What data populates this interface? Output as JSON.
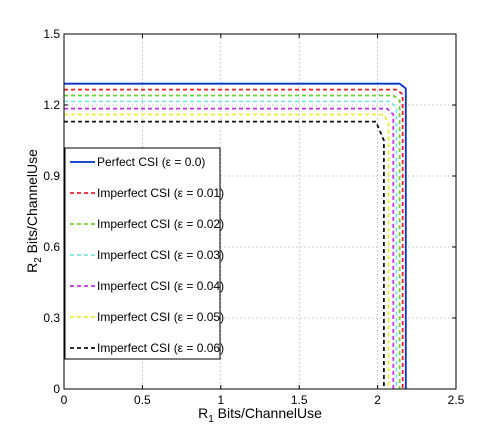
{
  "chart_data": {
    "type": "line",
    "title": "",
    "xlabel": {
      "main": "R",
      "sub": "1",
      "rest": " Bits/ChannelUse"
    },
    "ylabel": {
      "main": "R",
      "sub": "2",
      "rest": " Bits/ChannelUse"
    },
    "xlim": [
      0,
      2.5
    ],
    "ylim": [
      0,
      1.5
    ],
    "xticks": [
      0,
      0.5,
      1,
      1.5,
      2,
      2.5
    ],
    "yticks": [
      0,
      0.3,
      0.6,
      0.9,
      1.2,
      1.5
    ],
    "xtick_labels": [
      "0",
      "0.5",
      "1",
      "1.5",
      "2",
      "2.5"
    ],
    "ytick_labels": [
      "0",
      "0.3",
      "0.6",
      "0.9",
      "1.2",
      "1.5"
    ],
    "grid": true,
    "legend_position": "center-left",
    "series": [
      {
        "name": "Perfect CSI (ε = 0.0)",
        "color": "#0033cc",
        "dash": "solid",
        "points": [
          [
            0,
            1.29
          ],
          [
            2.14,
            1.29
          ],
          [
            2.18,
            1.27
          ],
          [
            2.18,
            0
          ]
        ]
      },
      {
        "name": "Imperfect CSI (ε = 0.01)",
        "color": "#e8202a",
        "dash": "dashed",
        "points": [
          [
            0,
            1.265
          ],
          [
            2.12,
            1.265
          ],
          [
            2.16,
            1.245
          ],
          [
            2.16,
            0
          ]
        ]
      },
      {
        "name": "Imperfect CSI (ε = 0.02)",
        "color": "#6fd12a",
        "dash": "dashed",
        "points": [
          [
            0,
            1.24
          ],
          [
            2.1,
            1.24
          ],
          [
            2.14,
            1.22
          ],
          [
            2.14,
            0
          ]
        ]
      },
      {
        "name": "Imperfect CSI (ε = 0.03)",
        "color": "#7ae8e0",
        "dash": "dashed",
        "points": [
          [
            0,
            1.215
          ],
          [
            2.08,
            1.215
          ],
          [
            2.12,
            1.19
          ],
          [
            2.12,
            0
          ]
        ]
      },
      {
        "name": "Imperfect CSI (ε = 0.04)",
        "color": "#c531e6",
        "dash": "dashed",
        "points": [
          [
            0,
            1.185
          ],
          [
            2.06,
            1.185
          ],
          [
            2.1,
            1.16
          ],
          [
            2.1,
            0
          ]
        ]
      },
      {
        "name": "Imperfect CSI (ε = 0.05)",
        "color": "#ecec30",
        "dash": "dashed",
        "points": [
          [
            0,
            1.16
          ],
          [
            2.04,
            1.16
          ],
          [
            2.07,
            1.12
          ],
          [
            2.07,
            0
          ]
        ]
      },
      {
        "name": "Imperfect CSI (ε = 0.06)",
        "color": "#111111",
        "dash": "dashed",
        "points": [
          [
            0,
            1.13
          ],
          [
            1.99,
            1.13
          ],
          [
            2.04,
            1.05
          ],
          [
            2.04,
            0
          ]
        ]
      }
    ]
  }
}
